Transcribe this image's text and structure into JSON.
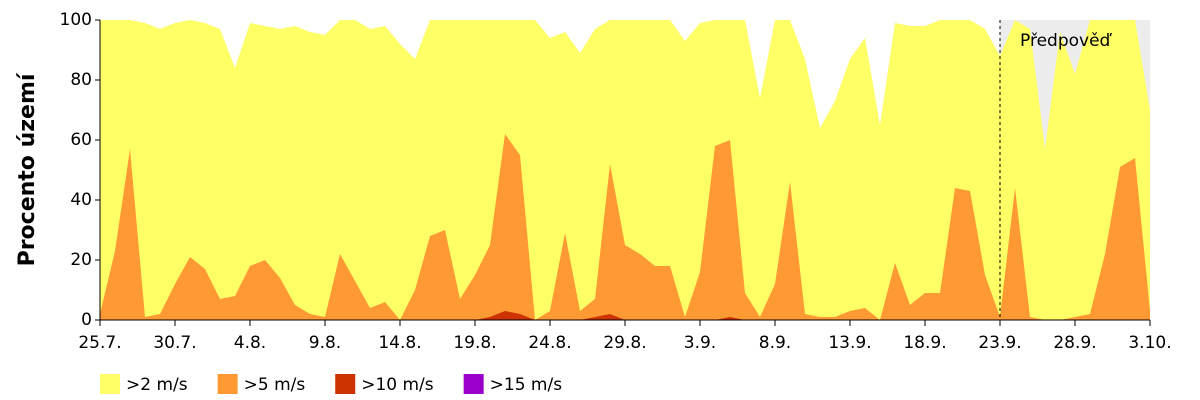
{
  "chart_data": {
    "type": "area",
    "ylabel": "Procento území",
    "categories": [
      "25.7.",
      null,
      null,
      null,
      null,
      "30.7.",
      null,
      null,
      null,
      null,
      "4.8.",
      null,
      null,
      null,
      null,
      "9.8.",
      null,
      null,
      null,
      null,
      "14.8.",
      null,
      null,
      null,
      null,
      "19.8.",
      null,
      null,
      null,
      null,
      "24.8.",
      null,
      null,
      null,
      null,
      "29.8.",
      null,
      null,
      null,
      null,
      "3.9.",
      null,
      null,
      null,
      null,
      "8.9.",
      null,
      null,
      null,
      null,
      "13.9.",
      null,
      null,
      null,
      null,
      "18.9.",
      null,
      null,
      null,
      null,
      "23.9.",
      null,
      null,
      null,
      null,
      "28.9.",
      null,
      null,
      null,
      null,
      "3.10."
    ],
    "series": [
      {
        "name": ">2 m/s",
        "color": "#ffff66",
        "values": [
          100,
          100,
          100,
          99,
          97,
          99,
          100,
          99,
          97,
          84,
          99,
          98,
          97,
          98,
          96,
          95,
          100,
          100,
          97,
          98,
          92,
          87,
          100,
          100,
          100,
          100,
          100,
          100,
          100,
          100,
          94,
          96,
          89,
          97,
          100,
          100,
          100,
          100,
          100,
          93,
          99,
          100,
          100,
          100,
          74,
          100,
          100,
          87,
          64,
          73,
          87,
          94,
          65,
          99,
          98,
          98,
          100,
          100,
          100,
          97,
          88,
          100,
          97,
          57,
          96,
          82,
          100,
          100,
          100,
          100,
          70
        ]
      },
      {
        "name": ">5 m/s",
        "color": "#ff9933",
        "values": [
          2,
          23,
          57,
          1,
          2,
          12,
          21,
          17,
          7,
          8,
          18,
          20,
          14,
          5,
          2,
          1,
          22,
          13,
          4,
          6,
          0,
          10,
          28,
          30,
          7,
          15,
          25,
          62,
          55,
          0,
          3,
          29,
          3,
          7,
          52,
          25,
          22,
          18,
          18,
          1,
          16,
          58,
          60,
          9,
          1,
          12,
          46,
          2,
          1,
          1,
          3,
          4,
          0,
          19,
          5,
          9,
          9,
          44,
          43,
          15,
          1,
          44,
          1,
          0,
          0,
          1,
          2,
          22,
          51,
          54,
          3
        ]
      },
      {
        "name": ">10 m/s",
        "color": "#cc3300",
        "values": [
          0,
          0,
          0,
          0,
          0,
          0,
          0,
          0,
          0,
          0,
          0,
          0,
          0,
          0,
          0,
          0,
          0,
          0,
          0,
          0,
          0,
          0,
          0,
          0,
          0,
          0,
          1,
          3,
          2,
          0,
          0,
          0,
          0,
          1,
          2,
          0,
          0,
          0,
          0,
          0,
          0,
          0,
          1,
          0,
          0,
          0,
          0,
          0,
          0,
          0,
          0,
          0,
          0,
          0,
          0,
          0,
          0,
          0,
          0,
          0,
          0,
          0,
          0,
          0,
          0,
          0,
          0,
          0,
          0,
          0,
          0
        ]
      },
      {
        "name": ">15 m/s",
        "color": "#9900cc",
        "values": [
          0,
          0,
          0,
          0,
          0,
          0,
          0,
          0,
          0,
          0,
          0,
          0,
          0,
          0,
          0,
          0,
          0,
          0,
          0,
          0,
          0,
          0,
          0,
          0,
          0,
          0,
          0,
          0,
          0,
          0,
          0,
          0,
          0,
          0,
          0,
          0,
          0,
          0,
          0,
          0,
          0,
          0,
          0,
          0,
          0,
          0,
          0,
          0,
          0,
          0,
          0,
          0,
          0,
          0,
          0,
          0,
          0,
          0,
          0,
          0,
          0,
          0,
          0,
          0,
          0,
          0,
          0,
          0,
          0,
          0,
          0
        ]
      }
    ],
    "ylim": [
      0,
      100
    ],
    "yticks": [
      0,
      20,
      40,
      60,
      80,
      100
    ],
    "annotation": {
      "text": "Předpověď",
      "x": "23.9."
    },
    "forecast_color": "#ececec"
  }
}
